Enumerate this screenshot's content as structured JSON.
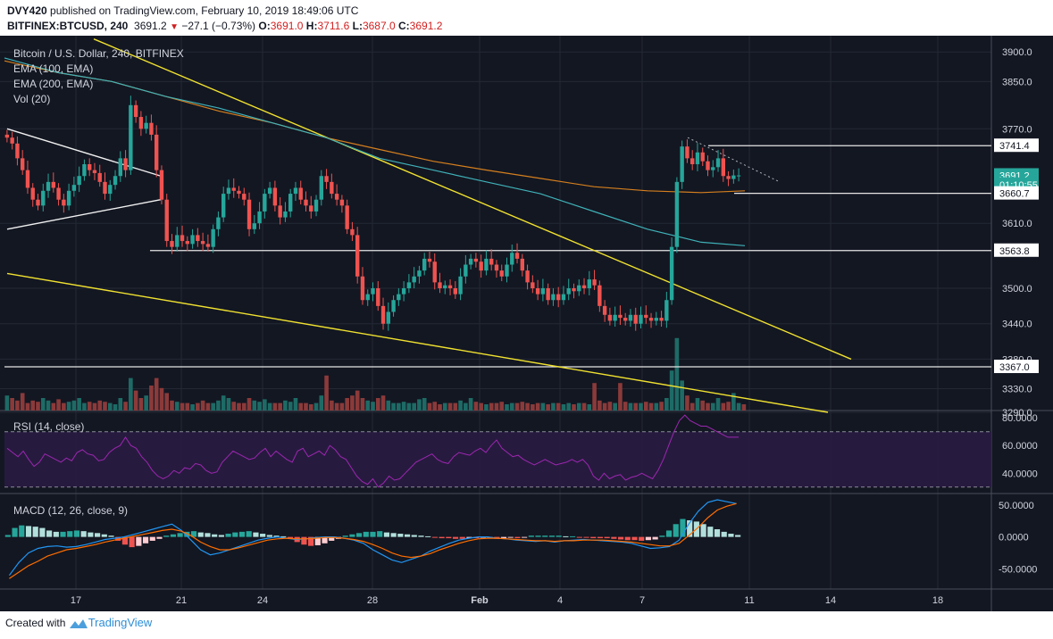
{
  "header": {
    "author": "DVY420",
    "published_text": "published on TradingView.com, February 10, 2019 18:49:06 UTC",
    "symbol": "BITFINEX:BTCUSD, 240",
    "last": "3691.2",
    "change": "−27.1 (−0.73%)",
    "o_label": "O:",
    "o": "3691.0",
    "h_label": "H:",
    "h": "3711.6",
    "l_label": "L:",
    "l": "3687.0",
    "c_label": "C:",
    "c": "3691.2"
  },
  "legend": {
    "title": "Bitcoin / U.S. Dollar, 240, BITFINEX",
    "ema100": "EMA (100, EMA)",
    "ema200": "EMA (200, EMA)",
    "vol": "Vol (20)",
    "rsi": "RSI (14, close)",
    "macd": "MACD (12, 26, close, 9)"
  },
  "footer": {
    "created": "Created with",
    "brand": "TradingView"
  },
  "colors": {
    "background": "#131722",
    "up": "#26a69a",
    "down": "#ef5350",
    "ema100": "#d47f1e",
    "ema200": "#3fb1b8",
    "trend": "#f0e130",
    "rsi": "#9c27b0",
    "macd": "#2196f3",
    "signal": "#ff6d00"
  },
  "chart_data": [
    {
      "type": "candlestick",
      "title": "Bitcoin / U.S. Dollar, 240, BITFINEX",
      "x_ticks": [
        "17",
        "21",
        "24",
        "28",
        "Feb",
        "4",
        "7",
        "11",
        "14",
        "18"
      ],
      "y_ticks": [
        "3900.0",
        "3850.0",
        "3770.0",
        "3610.0",
        "3500.0",
        "3440.0",
        "3380.0",
        "3330.0",
        "3290.0"
      ],
      "y_tick_values": [
        3900,
        3850,
        3770,
        3610,
        3500,
        3440,
        3380,
        3330,
        3290
      ],
      "ylim": [
        3290,
        3920
      ],
      "price_labels": [
        {
          "text": "3741.4",
          "value": 3741.4
        },
        {
          "text": "3691.2",
          "value": 3691.2
        },
        {
          "text": "01:10:55",
          "value": 3675.5
        },
        {
          "text": "3660.7",
          "value": 3660.7
        },
        {
          "text": "3563.8",
          "value": 3563.8
        },
        {
          "text": "3367.0",
          "value": 3367.0
        }
      ],
      "horizontal_levels": [
        3741.4,
        3660.7,
        3563.8,
        3367.0
      ],
      "closes": [
        3755,
        3745,
        3720,
        3700,
        3670,
        3650,
        3640,
        3665,
        3680,
        3670,
        3650,
        3640,
        3665,
        3675,
        3690,
        3710,
        3700,
        3695,
        3680,
        3660,
        3675,
        3690,
        3720,
        3700,
        3810,
        3790,
        3770,
        3780,
        3760,
        3700,
        3650,
        3580,
        3570,
        3590,
        3580,
        3575,
        3590,
        3580,
        3575,
        3570,
        3600,
        3620,
        3660,
        3670,
        3665,
        3660,
        3650,
        3600,
        3610,
        3630,
        3660,
        3670,
        3640,
        3620,
        3630,
        3660,
        3670,
        3650,
        3640,
        3630,
        3650,
        3690,
        3680,
        3660,
        3650,
        3640,
        3600,
        3590,
        3520,
        3480,
        3490,
        3500,
        3470,
        3440,
        3460,
        3480,
        3490,
        3500,
        3510,
        3520,
        3530,
        3550,
        3545,
        3510,
        3500,
        3505,
        3500,
        3490,
        3520,
        3540,
        3550,
        3545,
        3530,
        3550,
        3540,
        3530,
        3520,
        3540,
        3560,
        3550,
        3530,
        3510,
        3500,
        3490,
        3500,
        3480,
        3490,
        3480,
        3490,
        3500,
        3495,
        3505,
        3500,
        3515,
        3505,
        3470,
        3455,
        3445,
        3455,
        3450,
        3445,
        3455,
        3440,
        3455,
        3450,
        3445,
        3450,
        3445,
        3480,
        3570,
        3680,
        3740,
        3720,
        3710,
        3730,
        3715,
        3700,
        3705,
        3720,
        3690,
        3685,
        3691,
        3691
      ],
      "ema100": [
        [
          0,
          3885
        ],
        [
          60,
          3865
        ],
        [
          120,
          3850
        ],
        [
          180,
          3825
        ],
        [
          240,
          3800
        ],
        [
          300,
          3780
        ],
        [
          360,
          3755
        ],
        [
          420,
          3735
        ],
        [
          480,
          3715
        ],
        [
          540,
          3700
        ],
        [
          600,
          3686
        ],
        [
          660,
          3672
        ],
        [
          720,
          3665
        ],
        [
          780,
          3662
        ],
        [
          829,
          3665
        ]
      ],
      "ema200": [
        [
          0,
          3890
        ],
        [
          60,
          3865
        ],
        [
          120,
          3850
        ],
        [
          180,
          3825
        ],
        [
          240,
          3805
        ],
        [
          300,
          3780
        ],
        [
          360,
          3755
        ],
        [
          420,
          3720
        ],
        [
          480,
          3700
        ],
        [
          540,
          3680
        ],
        [
          600,
          3660
        ],
        [
          660,
          3630
        ],
        [
          720,
          3600
        ],
        [
          780,
          3578
        ],
        [
          829,
          3572
        ]
      ],
      "trendlines": [
        {
          "color": "white",
          "points": [
            [
              3,
              3770
            ],
            [
              175,
              3690
            ]
          ]
        },
        {
          "color": "white",
          "points": [
            [
              3,
              3600
            ],
            [
              175,
              3650
            ]
          ]
        },
        {
          "color": "yellow",
          "points": [
            [
              100,
              3922
            ],
            [
              948,
              3380
            ]
          ]
        },
        {
          "color": "yellow",
          "points": [
            [
              3,
              3525
            ],
            [
              922,
              3290
            ]
          ]
        },
        {
          "color": "white-dotted",
          "points": [
            [
              765,
              3755
            ],
            [
              868,
              3680
            ]
          ]
        }
      ],
      "volume": [
        0.6,
        0.5,
        0.4,
        0.7,
        0.3,
        0.4,
        0.35,
        0.5,
        0.4,
        0.3,
        0.45,
        0.3,
        0.35,
        0.4,
        0.5,
        0.3,
        0.35,
        0.3,
        0.4,
        0.35,
        0.3,
        0.25,
        0.5,
        0.35,
        1.3,
        0.8,
        0.5,
        0.6,
        1.0,
        1.3,
        0.9,
        0.7,
        0.4,
        0.35,
        0.3,
        0.3,
        0.25,
        0.3,
        0.4,
        0.3,
        0.3,
        0.4,
        0.6,
        0.5,
        0.35,
        0.3,
        0.3,
        0.5,
        0.4,
        0.35,
        0.45,
        0.3,
        0.3,
        0.3,
        0.4,
        0.35,
        0.5,
        0.3,
        0.3,
        0.25,
        0.3,
        0.6,
        1.4,
        0.4,
        0.3,
        0.3,
        0.5,
        0.6,
        0.8,
        0.5,
        0.4,
        0.35,
        0.5,
        0.6,
        0.4,
        0.3,
        0.3,
        0.35,
        0.3,
        0.3,
        0.45,
        0.5,
        0.3,
        0.35,
        0.25,
        0.3,
        0.3,
        0.3,
        0.4,
        0.3,
        0.5,
        0.35,
        0.3,
        0.25,
        0.3,
        0.3,
        0.35,
        0.25,
        0.3,
        0.3,
        0.35,
        0.3,
        0.25,
        0.3,
        0.3,
        0.25,
        0.3,
        0.3,
        0.25,
        0.3,
        0.25,
        0.3,
        0.3,
        0.25,
        1.1,
        0.4,
        0.3,
        0.35,
        0.3,
        1.1,
        0.35,
        0.3,
        0.3,
        0.3,
        0.35,
        0.3,
        0.3,
        0.35,
        0.5,
        1.6,
        2.9,
        1.2,
        0.6,
        0.3,
        0.5,
        0.4,
        0.3,
        0.3,
        0.5,
        0.3,
        0.35,
        0.7,
        0.3,
        0.25
      ]
    },
    {
      "type": "line",
      "title": "RSI (14, close)",
      "y_ticks": [
        "80.0000",
        "60.0000",
        "40.0000"
      ],
      "y_tick_values": [
        80,
        60,
        40
      ],
      "ylim": [
        26,
        84
      ],
      "bands": [
        70,
        30
      ],
      "series": [
        {
          "values": [
            58,
            55,
            52,
            56,
            50,
            45,
            48,
            54,
            52,
            50,
            48,
            51,
            49,
            55,
            57,
            54,
            53,
            49,
            50,
            55,
            58,
            60,
            66,
            60,
            58,
            52,
            48,
            42,
            38,
            36,
            38,
            42,
            40,
            44,
            43,
            47,
            46,
            42,
            40,
            41,
            48,
            52,
            56,
            54,
            52,
            50,
            51,
            55,
            58,
            52,
            56,
            53,
            50,
            48,
            56,
            58,
            52,
            54,
            56,
            53,
            60,
            57,
            52,
            50,
            44,
            38,
            34,
            32,
            36,
            30,
            33,
            38,
            35,
            36,
            40,
            44,
            48,
            50,
            52,
            54,
            50,
            48,
            47,
            52,
            55,
            54,
            53,
            56,
            58,
            55,
            60,
            64,
            58,
            55,
            52,
            53,
            50,
            48,
            46,
            48,
            50,
            48,
            46,
            47,
            48,
            50,
            48,
            50,
            46,
            38,
            35,
            40,
            36,
            38,
            39,
            35,
            37,
            38,
            40,
            38,
            36,
            42,
            50,
            60,
            70,
            78,
            82,
            78,
            76,
            74,
            74,
            72,
            70,
            68,
            66,
            66,
            66
          ]
        }
      ]
    },
    {
      "type": "line",
      "title": "MACD (12, 26, close, 9)",
      "y_ticks": [
        "50.0000",
        "0.0000",
        "-50.0000"
      ],
      "y_tick_values": [
        50,
        0,
        -50
      ],
      "ylim": [
        -80,
        65
      ],
      "series": [
        {
          "name": "MACD",
          "values": [
            -60,
            -40,
            -25,
            -18,
            -15,
            -14,
            -16,
            -15,
            -12,
            -8,
            -4,
            -2,
            0,
            4,
            8,
            12,
            16,
            20,
            10,
            -5,
            -20,
            -28,
            -25,
            -20,
            -15,
            -10,
            -5,
            -2,
            0,
            -2,
            -4,
            -3,
            -1,
            0,
            0,
            -2,
            -5,
            -10,
            -20,
            -28,
            -36,
            -40,
            -35,
            -30,
            -22,
            -16,
            -10,
            -5,
            -2,
            0,
            0,
            -2,
            -3,
            -5,
            -6,
            -7,
            -6,
            -8,
            -6,
            -5,
            -4,
            -5,
            -6,
            -7,
            -8,
            -10,
            -14,
            -18,
            -17,
            -15,
            -5,
            20,
            40,
            54,
            58,
            55,
            52
          ]
        },
        {
          "name": "Signal",
          "values": [
            -65,
            -55,
            -45,
            -38,
            -30,
            -25,
            -20,
            -18,
            -15,
            -12,
            -8,
            -5,
            -2,
            1,
            4,
            7,
            10,
            12,
            9,
            2,
            -8,
            -15,
            -20,
            -20,
            -17,
            -13,
            -9,
            -5,
            -3,
            -2,
            -3,
            -3,
            -2,
            -1,
            -1,
            -2,
            -4,
            -7,
            -12,
            -18,
            -25,
            -30,
            -32,
            -30,
            -26,
            -20,
            -15,
            -10,
            -6,
            -3,
            -2,
            -2,
            -3,
            -4,
            -5,
            -6,
            -6,
            -7,
            -6,
            -6,
            -5,
            -5,
            -5,
            -6,
            -7,
            -8,
            -10,
            -12,
            -14,
            -14,
            -10,
            2,
            15,
            30,
            42,
            48,
            52
          ]
        }
      ],
      "histogram": [
        3,
        14,
        18,
        17,
        16,
        14,
        10,
        8,
        8,
        9,
        10,
        9,
        7,
        6,
        4,
        2,
        -6,
        -12,
        -16,
        -14,
        -10,
        -6,
        -3,
        2,
        4,
        6,
        8,
        9,
        7,
        6,
        4,
        3,
        5,
        7,
        8,
        9,
        7,
        5,
        3,
        2,
        1,
        -3,
        -8,
        -12,
        -14,
        -13,
        -10,
        -6,
        -3,
        2,
        4,
        6,
        8,
        8,
        9,
        7,
        6,
        5,
        4,
        3,
        2,
        1,
        -1,
        -2,
        -2,
        -3,
        -3,
        -2,
        -2,
        -1,
        -2,
        -3,
        -2,
        -1,
        -2,
        -1,
        2,
        2,
        2,
        2,
        2,
        1,
        1,
        -1,
        -1,
        -2,
        -2,
        -2,
        -3,
        -4,
        -5,
        -5,
        -6,
        -5,
        -4,
        2,
        10,
        20,
        28,
        26,
        24,
        20,
        16,
        12,
        8,
        5,
        3
      ]
    }
  ]
}
